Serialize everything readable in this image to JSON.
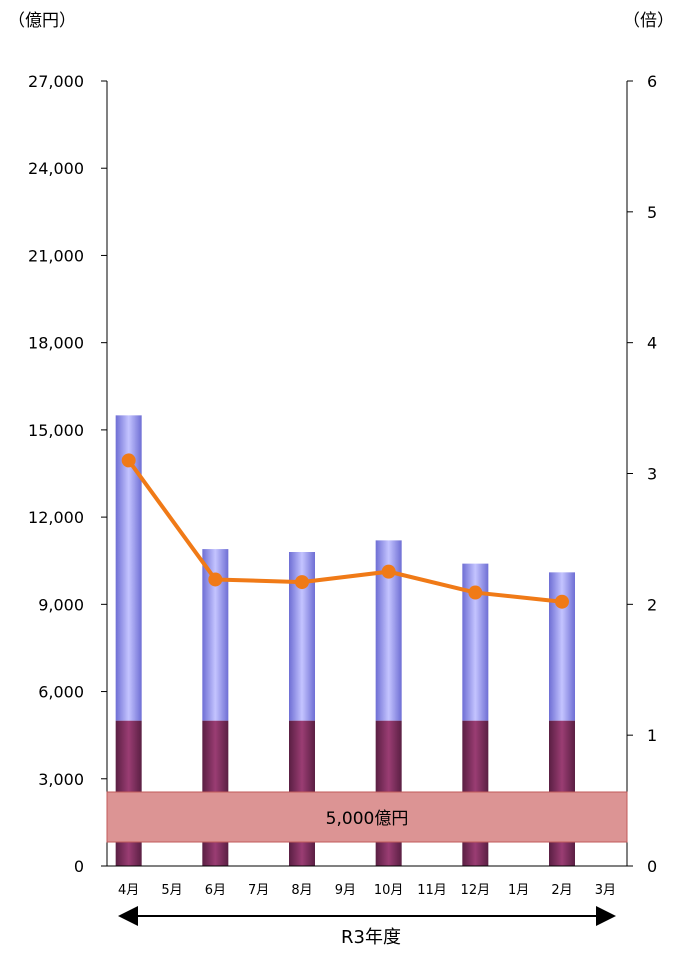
{
  "chart_data": {
    "type": "bar",
    "categories": [
      "4月",
      "5月",
      "6月",
      "7月",
      "8月",
      "9月",
      "10月",
      "11月",
      "12月",
      "1月",
      "2月",
      "3月"
    ],
    "series": [
      {
        "kind": "bar-stacked-bottom",
        "values": [
          5000,
          null,
          5000,
          null,
          5000,
          null,
          5000,
          null,
          5000,
          null,
          5000,
          null
        ],
        "color": "#7b2a5b"
      },
      {
        "kind": "bar-stacked-top",
        "values": [
          10500,
          null,
          5900,
          null,
          5800,
          null,
          6200,
          null,
          5400,
          null,
          5100,
          null
        ],
        "color": "#9b9bef"
      },
      {
        "kind": "line",
        "axis": "right",
        "values": [
          3.1,
          null,
          2.19,
          null,
          2.17,
          null,
          2.25,
          null,
          2.09,
          null,
          2.02,
          null
        ],
        "color": "#f07a17"
      }
    ],
    "left_unit": "（億円）",
    "right_unit": "（倍）",
    "left_ylim": [
      0,
      27000
    ],
    "left_ticks": [
      "0",
      "3,000",
      "6,000",
      "9,000",
      "12,000",
      "15,000",
      "18,000",
      "21,000",
      "24,000",
      "27,000"
    ],
    "right_ylim": [
      0,
      6
    ],
    "right_ticks": [
      "0",
      "1",
      "2",
      "3",
      "4",
      "5",
      "6"
    ],
    "annotation": "5,000億円",
    "period_label": "R3年度",
    "grid": false
  }
}
